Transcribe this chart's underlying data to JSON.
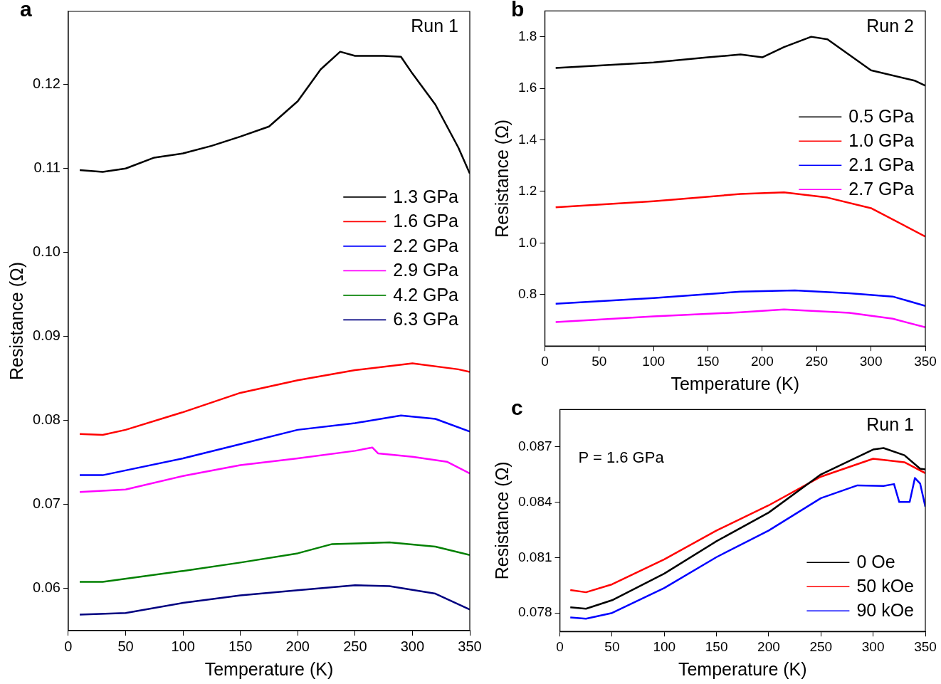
{
  "chart_data": [
    {
      "type": "line",
      "xlabel": "Temperature (K)",
      "ylabel": "Resistance (Ω)",
      "annotations": [
        "a",
        "Run 1"
      ],
      "legend": "center right",
      "line_style": "solid",
      "xlim": [
        0,
        350
      ],
      "xticks": [
        0,
        50,
        100,
        150,
        200,
        250,
        300,
        350
      ],
      "ylim": [
        0.055,
        0.1287
      ],
      "yticks": [
        0.06,
        0.07,
        0.08,
        0.09,
        {
          "value": 0.1,
          "label": "0.10"
        },
        0.11,
        0.12
      ],
      "series": [
        {
          "name": "1.3 GPa",
          "color": "#000000",
          "x": [
            10,
            30,
            50,
            75,
            100,
            125,
            150,
            175,
            200,
            220,
            237,
            250,
            275,
            290,
            300,
            320,
            340,
            350
          ],
          "values": [
            0.1098,
            0.1096,
            0.11,
            0.1113,
            0.1118,
            0.1127,
            0.1138,
            0.115,
            0.118,
            0.1218,
            0.1239,
            0.1234,
            0.1234,
            0.1233,
            0.1213,
            0.1176,
            0.1125,
            0.1094
          ]
        },
        {
          "name": "1.6 GPa",
          "color": "#ff0000",
          "x": [
            10,
            30,
            50,
            100,
            150,
            200,
            250,
            300,
            340,
            350
          ],
          "values": [
            0.0784,
            0.0783,
            0.0789,
            0.081,
            0.0833,
            0.0848,
            0.086,
            0.0868,
            0.0861,
            0.0858
          ]
        },
        {
          "name": "2.2 GPa",
          "color": "#0000ff",
          "x": [
            10,
            30,
            100,
            150,
            200,
            250,
            290,
            320,
            350
          ],
          "values": [
            0.0735,
            0.0735,
            0.0755,
            0.0772,
            0.0789,
            0.0797,
            0.0806,
            0.0802,
            0.0787
          ]
        },
        {
          "name": "2.9 GPa",
          "color": "#ff00ff",
          "x": [
            10,
            50,
            100,
            150,
            200,
            250,
            265,
            270,
            300,
            330,
            350
          ],
          "values": [
            0.0715,
            0.0718,
            0.0734,
            0.0747,
            0.0755,
            0.0764,
            0.0768,
            0.0761,
            0.0757,
            0.0751,
            0.0737
          ]
        },
        {
          "name": "4.2 GPa",
          "color": "#008000",
          "x": [
            10,
            30,
            100,
            150,
            200,
            230,
            280,
            320,
            350
          ],
          "values": [
            0.0608,
            0.0608,
            0.0621,
            0.0631,
            0.0642,
            0.0653,
            0.0655,
            0.065,
            0.064
          ]
        },
        {
          "name": "6.3 GPa",
          "color": "#000080",
          "x": [
            10,
            50,
            100,
            150,
            200,
            250,
            280,
            320,
            350
          ],
          "values": [
            0.0569,
            0.0571,
            0.0583,
            0.0592,
            0.0598,
            0.0604,
            0.0603,
            0.0594,
            0.0575
          ]
        }
      ]
    },
    {
      "type": "line",
      "xlabel": "Temperature (K)",
      "ylabel": "Resistance (Ω)",
      "annotations": [
        "b",
        "Run 2"
      ],
      "legend": "center right",
      "line_style": "solid",
      "xlim": [
        0,
        350
      ],
      "xticks": [
        0,
        50,
        100,
        150,
        200,
        250,
        300,
        350
      ],
      "ylim": [
        0.6,
        1.9
      ],
      "yticks": [
        0.8,
        {
          "value": 1,
          "label": "1.0"
        },
        1.2,
        1.4,
        1.6,
        1.8
      ],
      "series": [
        {
          "name": "0.5 GPa",
          "color": "#000000",
          "x": [
            10,
            100,
            150,
            180,
            200,
            220,
            245,
            260,
            300,
            340,
            350
          ],
          "values": [
            1.679,
            1.7,
            1.72,
            1.731,
            1.72,
            1.76,
            1.8,
            1.79,
            1.67,
            1.63,
            1.61
          ]
        },
        {
          "name": "1.0 GPa",
          "color": "#ff0000",
          "x": [
            10,
            100,
            180,
            220,
            260,
            300,
            350
          ],
          "values": [
            1.138,
            1.162,
            1.19,
            1.196,
            1.176,
            1.135,
            1.025
          ]
        },
        {
          "name": "2.1 GPa",
          "color": "#0000ff",
          "x": [
            10,
            100,
            180,
            230,
            280,
            320,
            350
          ],
          "values": [
            0.764,
            0.786,
            0.811,
            0.816,
            0.805,
            0.792,
            0.756
          ]
        },
        {
          "name": "2.7 GPa",
          "color": "#ff00ff",
          "x": [
            10,
            100,
            180,
            220,
            280,
            320,
            350
          ],
          "values": [
            0.693,
            0.715,
            0.731,
            0.742,
            0.729,
            0.706,
            0.673
          ]
        }
      ]
    },
    {
      "type": "line",
      "xlabel": "Temperature (K)",
      "ylabel": "Resistance (Ω)",
      "annotations": [
        "c",
        "Run 1",
        "P = 1.6 GPa"
      ],
      "legend": "bottom right",
      "line_style": "solid",
      "xlim": [
        0,
        350
      ],
      "xticks": [
        0,
        50,
        100,
        150,
        200,
        250,
        300,
        350
      ],
      "ylim": [
        0.077,
        0.089
      ],
      "yticks": [
        0.078,
        0.081,
        0.084,
        0.087
      ],
      "series": [
        {
          "name": "0 Oe",
          "color": "#000000",
          "x": [
            10,
            25,
            50,
            100,
            150,
            200,
            250,
            300,
            310,
            330,
            345,
            350
          ],
          "values": [
            0.07831,
            0.07823,
            0.07869,
            0.08013,
            0.08188,
            0.08343,
            0.08549,
            0.08684,
            0.08692,
            0.08653,
            0.0858,
            0.08576
          ]
        },
        {
          "name": "50 kOe",
          "color": "#ff0000",
          "x": [
            10,
            25,
            50,
            100,
            150,
            200,
            250,
            300,
            330,
            350
          ],
          "values": [
            0.07924,
            0.07912,
            0.07955,
            0.0809,
            0.08246,
            0.08382,
            0.08537,
            0.08634,
            0.08615,
            0.08556
          ]
        },
        {
          "name": "90 kOe",
          "color": "#0000ff",
          "x": [
            10,
            25,
            50,
            100,
            150,
            200,
            250,
            285,
            310,
            320,
            325,
            335,
            340,
            345,
            350
          ],
          "values": [
            0.07776,
            0.07769,
            0.078,
            0.07935,
            0.08102,
            0.08246,
            0.08421,
            0.0849,
            0.08487,
            0.08497,
            0.084,
            0.084,
            0.0853,
            0.085,
            0.08374
          ]
        }
      ]
    }
  ]
}
